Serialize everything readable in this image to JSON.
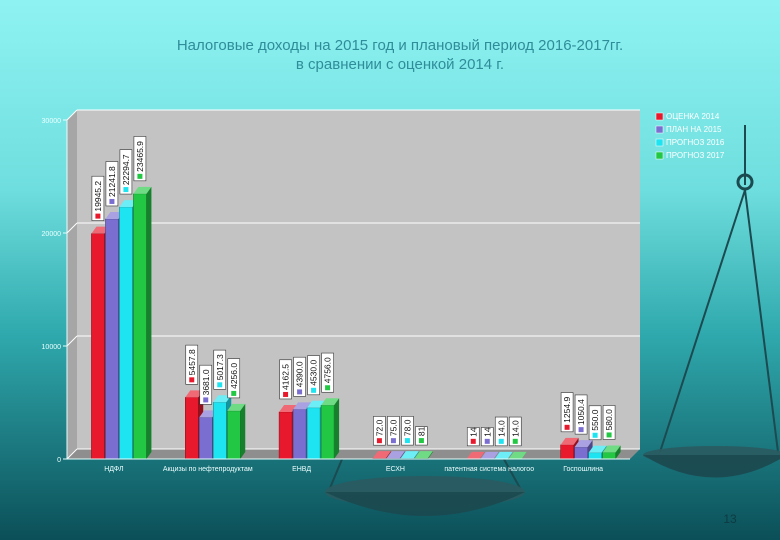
{
  "slide": {
    "title_line1": "Налоговые доходы на 2015 год и плановый период 2016-2017гг.",
    "title_line2": "в сравнении с оценкой 2014 г.",
    "page_number": "13"
  },
  "colors": {
    "series": [
      "#e8192c",
      "#7a6fd1",
      "#1ee3f0",
      "#22c744"
    ],
    "plot_background": "#c3c3c3",
    "scales": "#1b4a50"
  },
  "chart_data": {
    "type": "bar",
    "title": "Налоговые доходы на 2015 год и плановый период 2016-2017гг. в сравнении с оценкой 2014 г.",
    "categories": [
      "НДФЛ",
      "Акцизы по нефтепродуктам",
      "ЕНВД",
      "ЕСХН",
      "патентная система налогоо",
      "Госпошлина"
    ],
    "series": [
      {
        "name": "ОЦЕНКА 2014",
        "values": [
          19945.2,
          5457.8,
          4162.5,
          72.0,
          14.0,
          1254.9
        ],
        "labels": [
          "19945.2",
          "5457.8",
          "4162.5",
          "72.0",
          "14",
          "1254.9"
        ]
      },
      {
        "name": "ПЛАН НА 2015",
        "values": [
          21241.8,
          3681.0,
          4390.0,
          75.0,
          14.0,
          1050.4
        ],
        "labels": [
          "21241.8",
          "3681.0",
          "4390.0",
          "75.0",
          "14",
          "1050.4"
        ]
      },
      {
        "name": "ПРОГНОЗ 2016",
        "values": [
          22294.7,
          5017.3,
          4530.0,
          78.0,
          14.0,
          550.0
        ],
        "labels": [
          "22294.7",
          "5017.3",
          "4530.0",
          "78.0",
          "14.0",
          "550.0"
        ]
      },
      {
        "name": "ПРОГНОЗ 2017",
        "values": [
          23465.9,
          4256.0,
          4756.0,
          81.0,
          14.0,
          580.0
        ],
        "labels": [
          "23465.9",
          "4256.0",
          "4756.0",
          "81",
          "14.0",
          "580.0"
        ]
      }
    ],
    "yticks": [
      "0",
      "10000",
      "20000",
      "30000"
    ],
    "ylim": [
      0,
      30000
    ],
    "grid": true,
    "legend_position": "top-right"
  }
}
